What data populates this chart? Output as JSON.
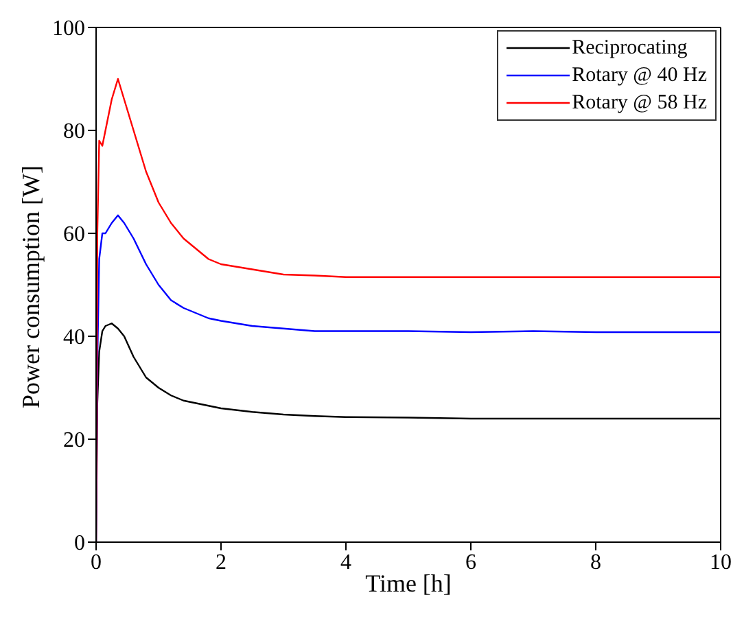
{
  "chart_data": {
    "type": "line",
    "xlabel": "Time [h]",
    "ylabel": "Power consumption [W]",
    "x": [
      0,
      0.02,
      0.05,
      0.1,
      0.15,
      0.25,
      0.35,
      0.45,
      0.6,
      0.8,
      1.0,
      1.2,
      1.4,
      1.6,
      1.8,
      2,
      2.5,
      3,
      3.5,
      4,
      5,
      6,
      7,
      8,
      9,
      10
    ],
    "series": [
      {
        "name": "Reciprocating",
        "color": "#000000",
        "values": [
          0,
          27,
          37,
          41,
          42,
          42.5,
          41.5,
          40,
          36,
          32,
          30,
          28.5,
          27.5,
          27,
          26.5,
          26,
          25.3,
          24.8,
          24.5,
          24.3,
          24.2,
          24,
          24,
          24,
          24,
          24
        ]
      },
      {
        "name": "Rotary @ 40 Hz",
        "color": "#0000ff",
        "values": [
          0,
          35,
          55,
          60,
          60,
          62,
          63.5,
          62,
          59,
          54,
          50,
          47,
          45.5,
          44.5,
          43.5,
          43,
          42,
          41.5,
          41,
          41,
          41,
          40.8,
          41,
          40.8,
          40.8,
          40.8
        ]
      },
      {
        "name": "Rotary @ 58 Hz",
        "color": "#ff0000",
        "values": [
          0,
          60,
          78,
          77,
          80,
          86,
          90,
          86,
          80,
          72,
          66,
          62,
          59,
          57,
          55,
          54,
          53,
          52,
          51.8,
          51.5,
          51.5,
          51.5,
          51.5,
          51.5,
          51.5,
          51.5
        ]
      }
    ],
    "xlim": [
      0,
      10
    ],
    "xticks": [
      0,
      2,
      4,
      6,
      8,
      10
    ],
    "ylim": [
      0,
      100
    ],
    "yticks": [
      0,
      20,
      40,
      60,
      80,
      100
    ],
    "grid": false,
    "legend": "top right",
    "marker": "none",
    "line_style": "solid"
  }
}
